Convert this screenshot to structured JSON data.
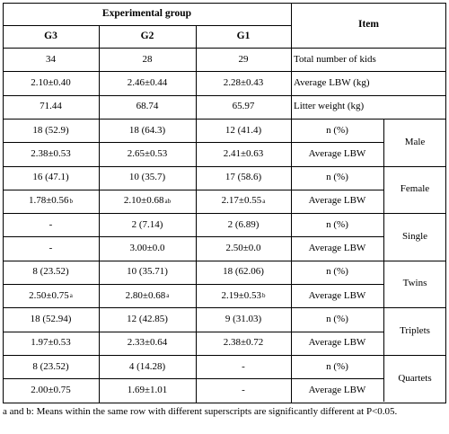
{
  "header": {
    "group_title": "Experimental group",
    "item_title": "Item",
    "columns": [
      "G3",
      "G2",
      "G1"
    ]
  },
  "rows": [
    {
      "g3": "34",
      "g2": "28",
      "g1": "29",
      "item": "Total number of kids"
    },
    {
      "g3": "2.10±0.40",
      "g2": "2.46±0.44",
      "g1": "2.28±0.43",
      "item": "Average LBW (kg)"
    },
    {
      "g3": "71.44",
      "g2": "68.74",
      "g1": "65.97",
      "item": "Litter weight (kg)"
    },
    {
      "g3": "18 (52.9)",
      "g2": "18 (64.3)",
      "g1": "12 (41.4)",
      "item": "n (%)"
    },
    {
      "g3": "2.38±0.53",
      "g2": "2.65±0.53",
      "g1": "2.41±0.63",
      "item": "Average LBW"
    },
    {
      "g3": "16 (47.1)",
      "g2": "10 (35.7)",
      "g1": "17 (58.6)",
      "item": "n (%)"
    },
    {
      "g3": "1.78±0.56",
      "g3_sup": "b",
      "g2": "2.10±0.68",
      "g2_sup": "ab",
      "g1": "2.17±0.55",
      "g1_sup": "a",
      "item": "Average LBW"
    },
    {
      "g3": "-",
      "g2": "2 (7.14)",
      "g1": "2 (6.89)",
      "item": "n (%)"
    },
    {
      "g3": "-",
      "g2": "3.00±0.0",
      "g1": "2.50±0.0",
      "item": "Average LBW"
    },
    {
      "g3": "8 (23.52)",
      "g2": "10 (35.71)",
      "g1": "18 (62.06)",
      "item": "n (%)"
    },
    {
      "g3": "2.50±0.75",
      "g3_sup": "a",
      "g2": "2.80±0.68",
      "g2_sup": "a",
      "g1": "2.19±0.53",
      "g1_sup": "b",
      "item": "Average LBW"
    },
    {
      "g3": "18 (52.94)",
      "g2": "12 (42.85)",
      "g1": "9 (31.03)",
      "item": "n (%)"
    },
    {
      "g3": "1.97±0.53",
      "g2": "2.33±0.64",
      "g1": "2.38±0.72",
      "item": "Average LBW"
    },
    {
      "g3": "8 (23.52)",
      "g2": "4 (14.28)",
      "g1": "-",
      "item": "n (%)"
    },
    {
      "g3": "2.00±0.75",
      "g2": "1.69±1.01",
      "g1": "-",
      "item": "Average LBW"
    }
  ],
  "groups": [
    "Male",
    "Female",
    "Single",
    "Twins",
    "Triplets",
    "Quartets"
  ],
  "footnote": "a and b: Means within the same row with different superscripts are significantly different at P<0.05."
}
